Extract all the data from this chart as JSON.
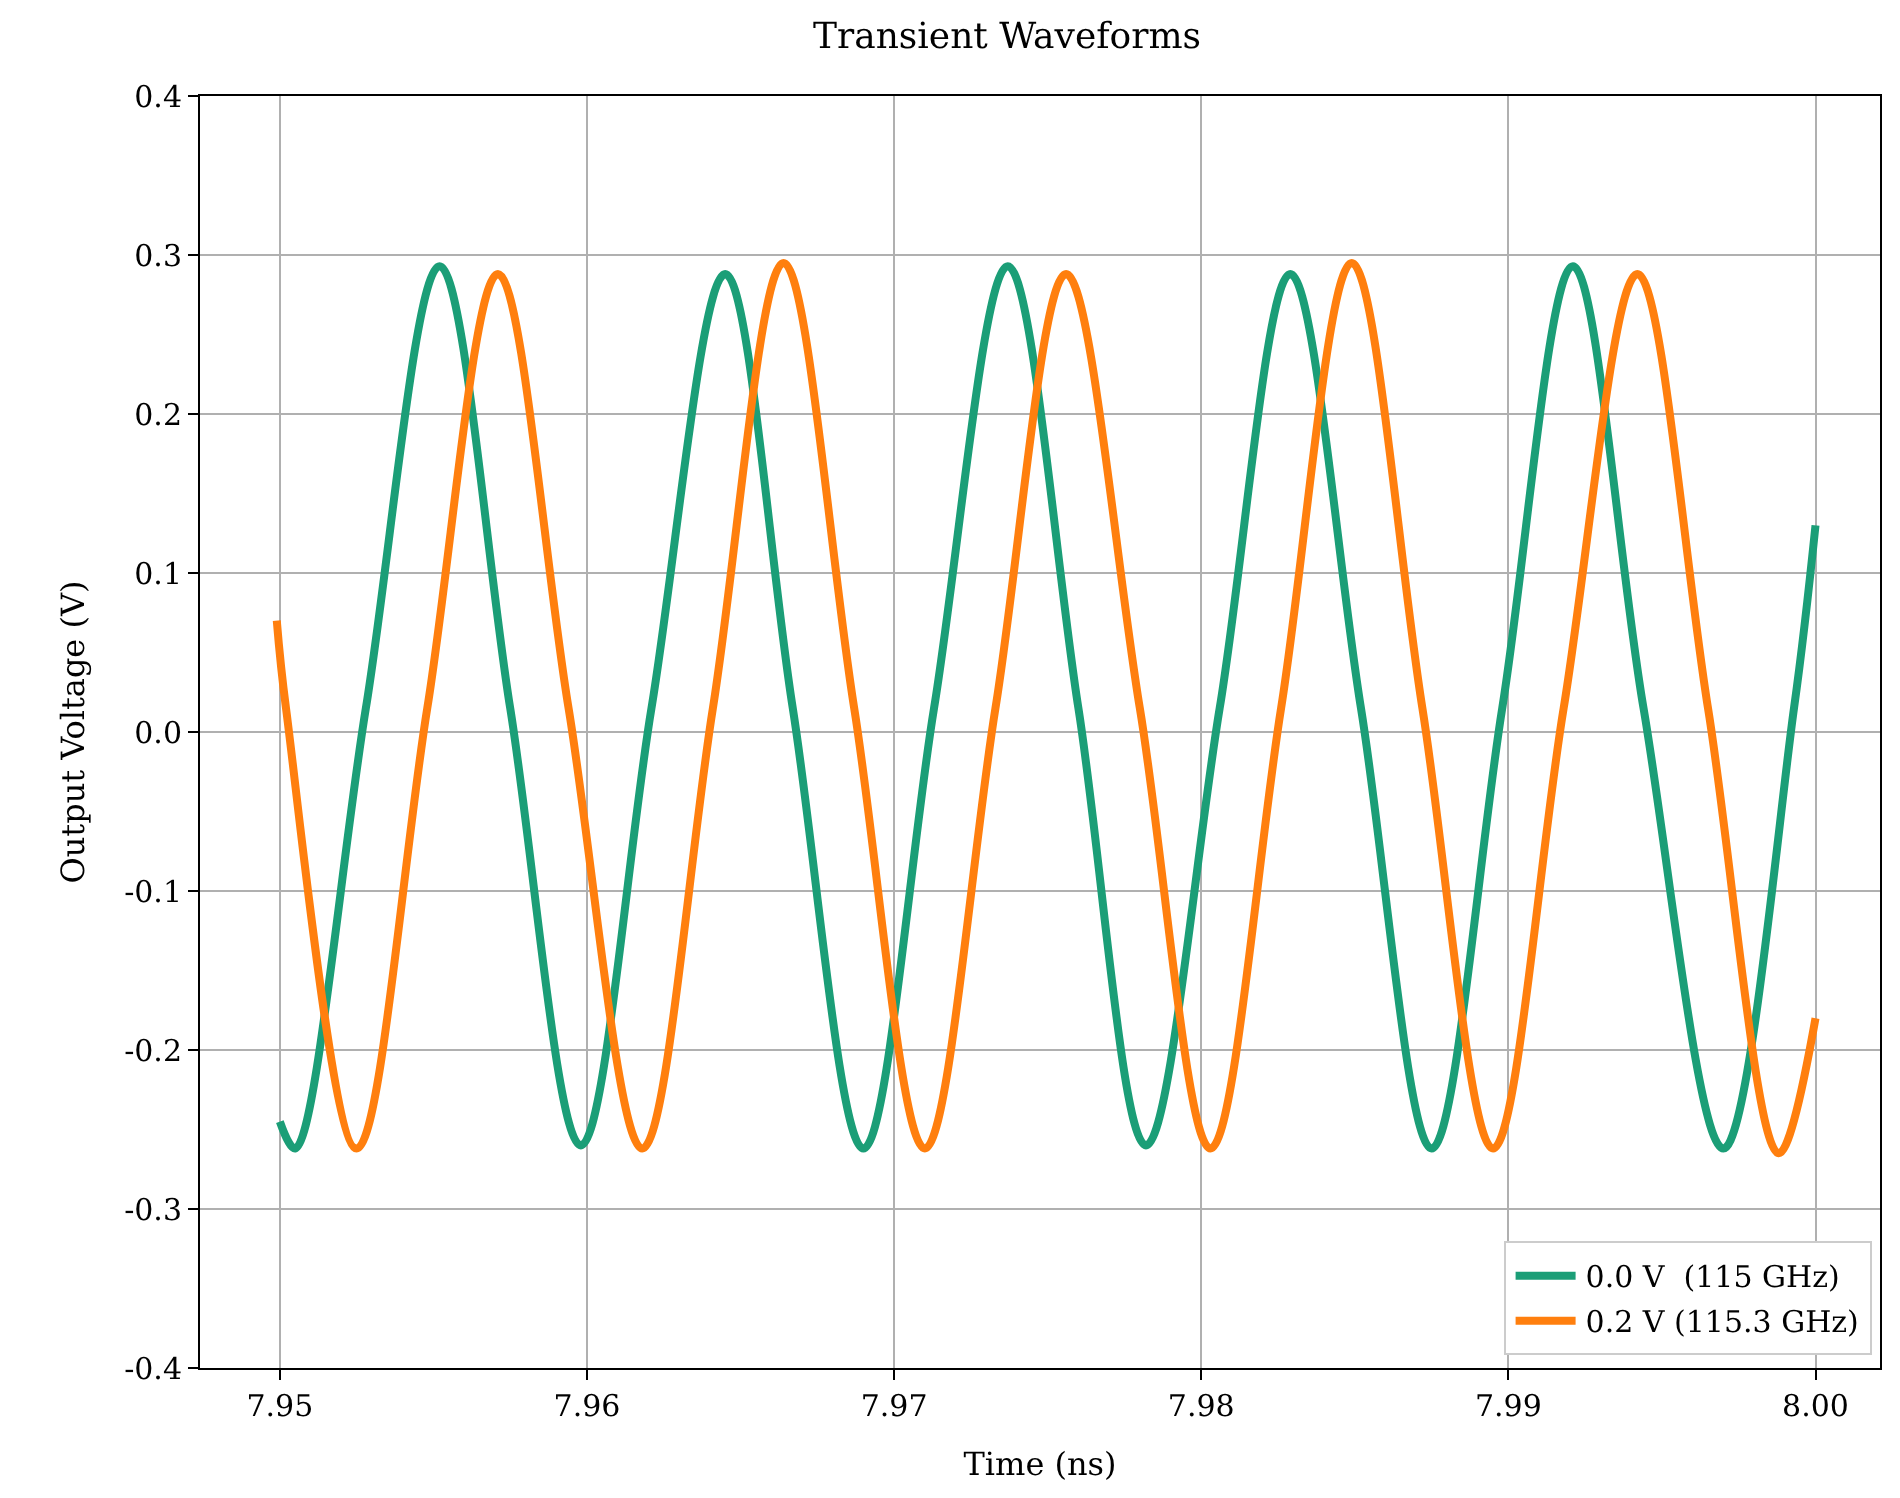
{
  "chart_data": {
    "type": "line",
    "title": "Transient Waveforms",
    "xlabel": "Time (ns)",
    "ylabel": "Output Voltage (V)",
    "series": [
      {
        "name": "0.0 V  (115 GHz)",
        "color": "#1b9e77",
        "x": [
          7.95,
          7.9505,
          7.9528,
          7.9552,
          7.9575,
          7.9598,
          7.9621,
          7.9645,
          7.9667,
          7.969,
          7.9713,
          7.9737,
          7.976,
          7.9782,
          7.9806,
          7.9829,
          7.9852,
          7.9875,
          7.9898,
          7.9921,
          7.9944,
          7.997,
          7.9993,
          8.0
        ],
        "values": [
          -0.245,
          -0.262,
          0.015,
          0.293,
          0.015,
          -0.26,
          0.015,
          0.288,
          0.015,
          -0.262,
          0.015,
          0.293,
          0.015,
          -0.26,
          0.015,
          0.288,
          0.015,
          -0.262,
          0.015,
          0.293,
          0.015,
          -0.262,
          0.015,
          0.13
        ]
      },
      {
        "name": "0.2 V (115.3 GHz)",
        "color": "#ff7f0e",
        "x": [
          7.9499,
          7.9502,
          7.9525,
          7.9548,
          7.9571,
          7.9594,
          7.9618,
          7.9641,
          7.9664,
          7.9687,
          7.971,
          7.9733,
          7.9756,
          7.978,
          7.9803,
          7.9826,
          7.9849,
          7.9872,
          7.9895,
          7.9918,
          7.9942,
          7.9965,
          7.9988,
          8.0
        ],
        "values": [
          0.07,
          0.015,
          -0.262,
          0.015,
          0.288,
          0.015,
          -0.262,
          0.015,
          0.295,
          0.015,
          -0.262,
          0.015,
          0.288,
          0.015,
          -0.262,
          0.015,
          0.295,
          0.015,
          -0.262,
          0.015,
          0.288,
          0.015,
          -0.265,
          -0.18
        ]
      }
    ],
    "xlim": [
      7.9474,
      8.0021
    ],
    "ylim": [
      -0.4,
      0.4
    ],
    "xticks": [
      {
        "value": 7.95,
        "label": "7.95"
      },
      {
        "value": 7.96,
        "label": "7.96"
      },
      {
        "value": 7.97,
        "label": "7.97"
      },
      {
        "value": 7.98,
        "label": "7.98"
      },
      {
        "value": 7.99,
        "label": "7.99"
      },
      {
        "value": 8.0,
        "label": "8.00"
      }
    ],
    "yticks": [
      {
        "value": -0.4,
        "label": "-0.4"
      },
      {
        "value": -0.3,
        "label": "-0.3"
      },
      {
        "value": -0.2,
        "label": "-0.2"
      },
      {
        "value": -0.1,
        "label": "-0.1"
      },
      {
        "value": 0,
        "label": "0.0"
      },
      {
        "value": 0.1,
        "label": "0.1"
      },
      {
        "value": 0.2,
        "label": "0.2"
      },
      {
        "value": 0.3,
        "label": "0.3"
      },
      {
        "value": 0.4,
        "label": "0.4"
      }
    ],
    "grid": true,
    "legend": "bottom right",
    "line_style": "solid",
    "marker": "none"
  }
}
